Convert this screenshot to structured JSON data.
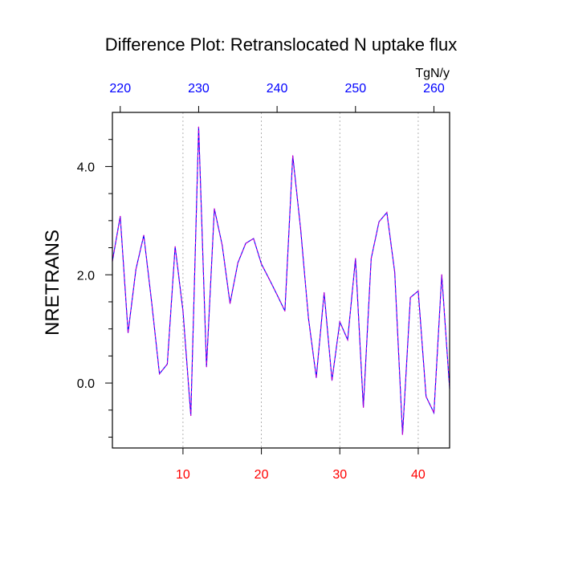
{
  "chart_data": {
    "type": "line",
    "title": "Difference Plot: Retranslocated N uptake flux",
    "ylabel": "NRETRANS",
    "units": "TgN/y",
    "xlim": [
      1,
      44
    ],
    "ylim": [
      -1.2,
      5.0
    ],
    "grid": "vertical-dashed",
    "bottom_axis": {
      "ticks": [
        10,
        20,
        30,
        40
      ],
      "color": "#ff0000"
    },
    "top_axis": {
      "ticks": [
        "220",
        "230",
        "240",
        "250",
        "260"
      ],
      "tick_positions_x": [
        2,
        12,
        22,
        32,
        42
      ],
      "color": "#0000ff"
    },
    "y_ticks": [
      {
        "value": 0.0,
        "label": "0.0"
      },
      {
        "value": 2.0,
        "label": "2.0"
      },
      {
        "value": 4.0,
        "label": "4.0"
      }
    ],
    "y_minor_ticks": [
      -1.0,
      -0.5,
      0.5,
      1.0,
      1.5,
      2.5,
      3.0,
      3.5,
      4.5
    ],
    "series": [
      {
        "line_colors": [
          "#0000ff",
          "#cc00cc"
        ],
        "x": [
          1,
          2,
          3,
          4,
          5,
          6,
          7,
          8,
          9,
          10,
          11,
          12,
          13,
          14,
          15,
          16,
          17,
          18,
          19,
          20,
          21,
          22,
          23,
          24,
          25,
          26,
          27,
          28,
          29,
          30,
          31,
          32,
          33,
          34,
          35,
          36,
          37,
          38,
          39,
          40,
          41,
          42,
          43,
          44
        ],
        "values": [
          2.25,
          3.08,
          0.93,
          2.1,
          2.73,
          1.5,
          0.17,
          0.35,
          2.52,
          1.33,
          -0.6,
          4.73,
          0.3,
          3.22,
          2.55,
          1.47,
          2.22,
          2.58,
          2.67,
          2.2,
          1.92,
          1.63,
          1.33,
          4.2,
          2.85,
          1.2,
          0.1,
          1.67,
          0.05,
          1.13,
          0.8,
          2.3,
          -0.45,
          2.3,
          2.98,
          3.15,
          2.05,
          -0.95,
          1.58,
          1.7,
          -0.25,
          -0.55,
          2.0,
          -0.1
        ]
      }
    ]
  }
}
